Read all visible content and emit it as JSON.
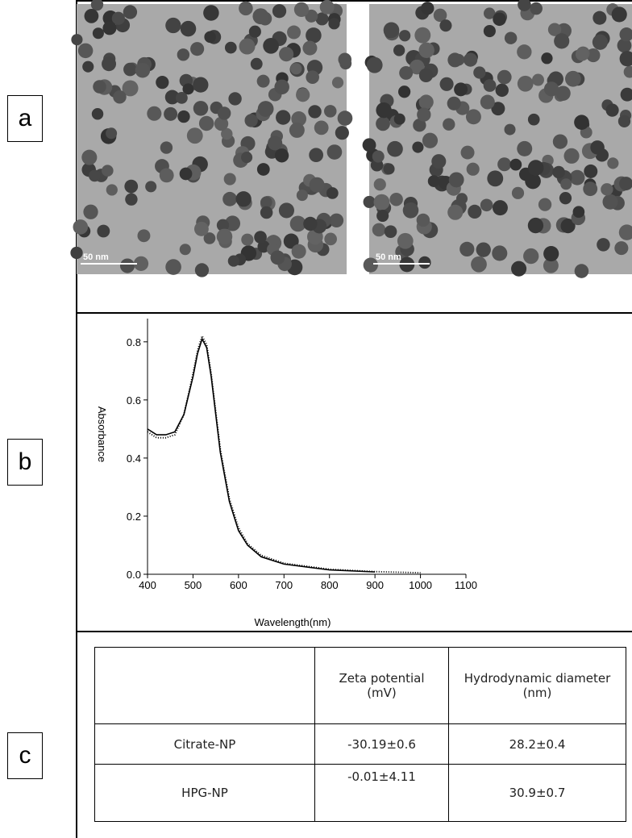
{
  "panels": {
    "a": {
      "label": "a",
      "scale_bars": [
        "50 nm",
        "50 nm"
      ]
    },
    "b": {
      "label": "b"
    },
    "c": {
      "label": "c",
      "table": {
        "header": [
          "Zeta potential (mV)",
          "Hydrodynamic diameter (nm)"
        ],
        "rows": [
          [
            "Citrate-NP",
            "-30.19±0.6",
            "28.2±0.4"
          ],
          [
            "HPG-NP",
            "-0.01±4.11",
            "30.9±0.7"
          ]
        ]
      }
    }
  },
  "chart_data": {
    "type": "line",
    "x_label": "Wavelength(nm)",
    "y_label": "Absorbance",
    "xlim": [
      400,
      1100
    ],
    "xticks": [
      400,
      500,
      600,
      700,
      800,
      900,
      1000,
      1100
    ],
    "ylim": [
      0,
      0.88
    ],
    "yticks": [
      {
        "value": 0,
        "label": "0.0"
      },
      0.2,
      0.4,
      0.6,
      0.8
    ],
    "series": [
      {
        "color": "#000000",
        "style": "solid",
        "x": [
          400,
          420,
          440,
          460,
          480,
          500,
          510,
          520,
          530,
          540,
          550,
          560,
          580,
          600,
          620,
          650,
          700,
          800,
          900
        ],
        "values": [
          0.5,
          0.48,
          0.48,
          0.49,
          0.55,
          0.68,
          0.76,
          0.81,
          0.78,
          0.68,
          0.55,
          0.42,
          0.25,
          0.15,
          0.1,
          0.06,
          0.035,
          0.015,
          0.008
        ]
      },
      {
        "color": "#000000",
        "style": "dotted",
        "x": [
          400,
          420,
          440,
          460,
          480,
          500,
          510,
          520,
          530,
          540,
          550,
          560,
          580,
          600,
          620,
          650,
          700,
          800,
          900,
          1000
        ],
        "values": [
          0.49,
          0.47,
          0.47,
          0.48,
          0.55,
          0.69,
          0.77,
          0.82,
          0.79,
          0.69,
          0.56,
          0.43,
          0.26,
          0.16,
          0.105,
          0.065,
          0.038,
          0.017,
          0.009,
          0.005
        ]
      }
    ]
  }
}
